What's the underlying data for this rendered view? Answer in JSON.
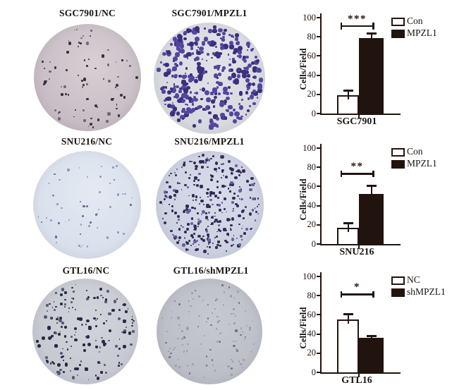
{
  "colors": {
    "ink": "#21130e",
    "background": "#ffffff"
  },
  "panels": {
    "dishes": [
      {
        "label": "SGC7901/NC",
        "bg_center": "#d8d0d5",
        "bg_edge": "#c7bcc4",
        "bg_outer": "#beb2bb",
        "dot_color": "#34323d",
        "dot_alt": "#6e6873",
        "alt_prob": 0.35,
        "dot_count": 78,
        "dot_min": 1.5,
        "dot_max": 4.5,
        "seed": 7,
        "density": "sparse"
      },
      {
        "label": "SGC7901/MPZL1",
        "bg_center": "#e0e2e7",
        "bg_edge": "#d6d9de",
        "bg_outer": "#ced2d9",
        "dot_color": "#5346a0",
        "dot_alt": "#3b2f7e",
        "alt_prob": 0.4,
        "dot_count": 360,
        "dot_min": 2.0,
        "dot_max": 7.5,
        "seed": 13,
        "density": "dense"
      },
      {
        "label": "SNU216/NC",
        "bg_center": "#e4e9f2",
        "bg_edge": "#d9e0ec",
        "bg_outer": "#d3dbe8",
        "dot_color": "#9a93bd",
        "dot_alt": "#6c64a0",
        "alt_prob": 0.3,
        "dot_count": 52,
        "dot_min": 1.5,
        "dot_max": 3.5,
        "seed": 21,
        "density": "sparse"
      },
      {
        "label": "SNU216/MPZL1",
        "bg_center": "#d7dbe9",
        "bg_edge": "#ccd1e1",
        "bg_outer": "#c5cbda",
        "dot_color": "#332c55",
        "dot_alt": "#6a5fa0",
        "alt_prob": 0.18,
        "dot_count": 330,
        "dot_min": 1.5,
        "dot_max": 5.0,
        "seed": 33,
        "density": "dense"
      },
      {
        "label": "GTL16/NC",
        "bg_center": "#d1d4da",
        "bg_edge": "#c6c9d1",
        "bg_outer": "#bfc2cb",
        "dot_color": "#262a42",
        "dot_alt": "#555a74",
        "alt_prob": 0.3,
        "dot_count": 168,
        "dot_min": 1.5,
        "dot_max": 5.0,
        "seed": 41,
        "density": "medium"
      },
      {
        "label": "GTL16/shMPZL1",
        "bg_center": "#c7c9d0",
        "bg_edge": "#bbbec6",
        "bg_outer": "#b4b7c0",
        "dot_color": "#9b9dab",
        "dot_alt": "#6f7284",
        "alt_prob": 0.3,
        "dot_count": 118,
        "dot_min": 1.5,
        "dot_max": 3.5,
        "seed": 55,
        "density": "sparse-faint"
      }
    ]
  },
  "chart_data": [
    {
      "type": "bar",
      "title": "",
      "xlabel": "SGC7901",
      "ylabel": "Cells/Field",
      "categories": [
        "Con",
        "MPZL1"
      ],
      "values": [
        19,
        79
      ],
      "errors": [
        5,
        5
      ],
      "ylim": [
        0,
        100
      ],
      "yticks": [
        0,
        20,
        40,
        60,
        80,
        100
      ],
      "legend": [
        "Con",
        "MPZL1"
      ],
      "legend_position": "top-right",
      "bar_colors": [
        "#ffffff",
        "#21130e"
      ],
      "bar_border": "#21130e",
      "significance": "***",
      "significance_y": 92,
      "grid": false
    },
    {
      "type": "bar",
      "title": "",
      "xlabel": "SNU216",
      "ylabel": "Cells/Field",
      "categories": [
        "Con",
        "MPZL1"
      ],
      "values": [
        17,
        52
      ],
      "errors": [
        5,
        9
      ],
      "ylim": [
        0,
        100
      ],
      "yticks": [
        0,
        20,
        40,
        60,
        80,
        100
      ],
      "legend": [
        "Con",
        "MPZL1"
      ],
      "legend_position": "top-right",
      "bar_colors": [
        "#ffffff",
        "#21130e"
      ],
      "bar_border": "#21130e",
      "significance": "**",
      "significance_y": 74,
      "grid": false
    },
    {
      "type": "bar",
      "title": "",
      "xlabel": "GTL16",
      "ylabel": "Cells/Field",
      "categories": [
        "NC",
        "shMPZL1"
      ],
      "values": [
        55,
        36
      ],
      "errors": [
        6,
        2.5
      ],
      "ylim": [
        0,
        100
      ],
      "yticks": [
        0,
        20,
        40,
        60,
        80,
        100
      ],
      "legend": [
        "NC",
        "shMPZL1"
      ],
      "legend_position": "top-right",
      "bar_colors": [
        "#ffffff",
        "#21130e"
      ],
      "bar_border": "#21130e",
      "significance": "*",
      "significance_y": 82,
      "grid": false
    }
  ]
}
